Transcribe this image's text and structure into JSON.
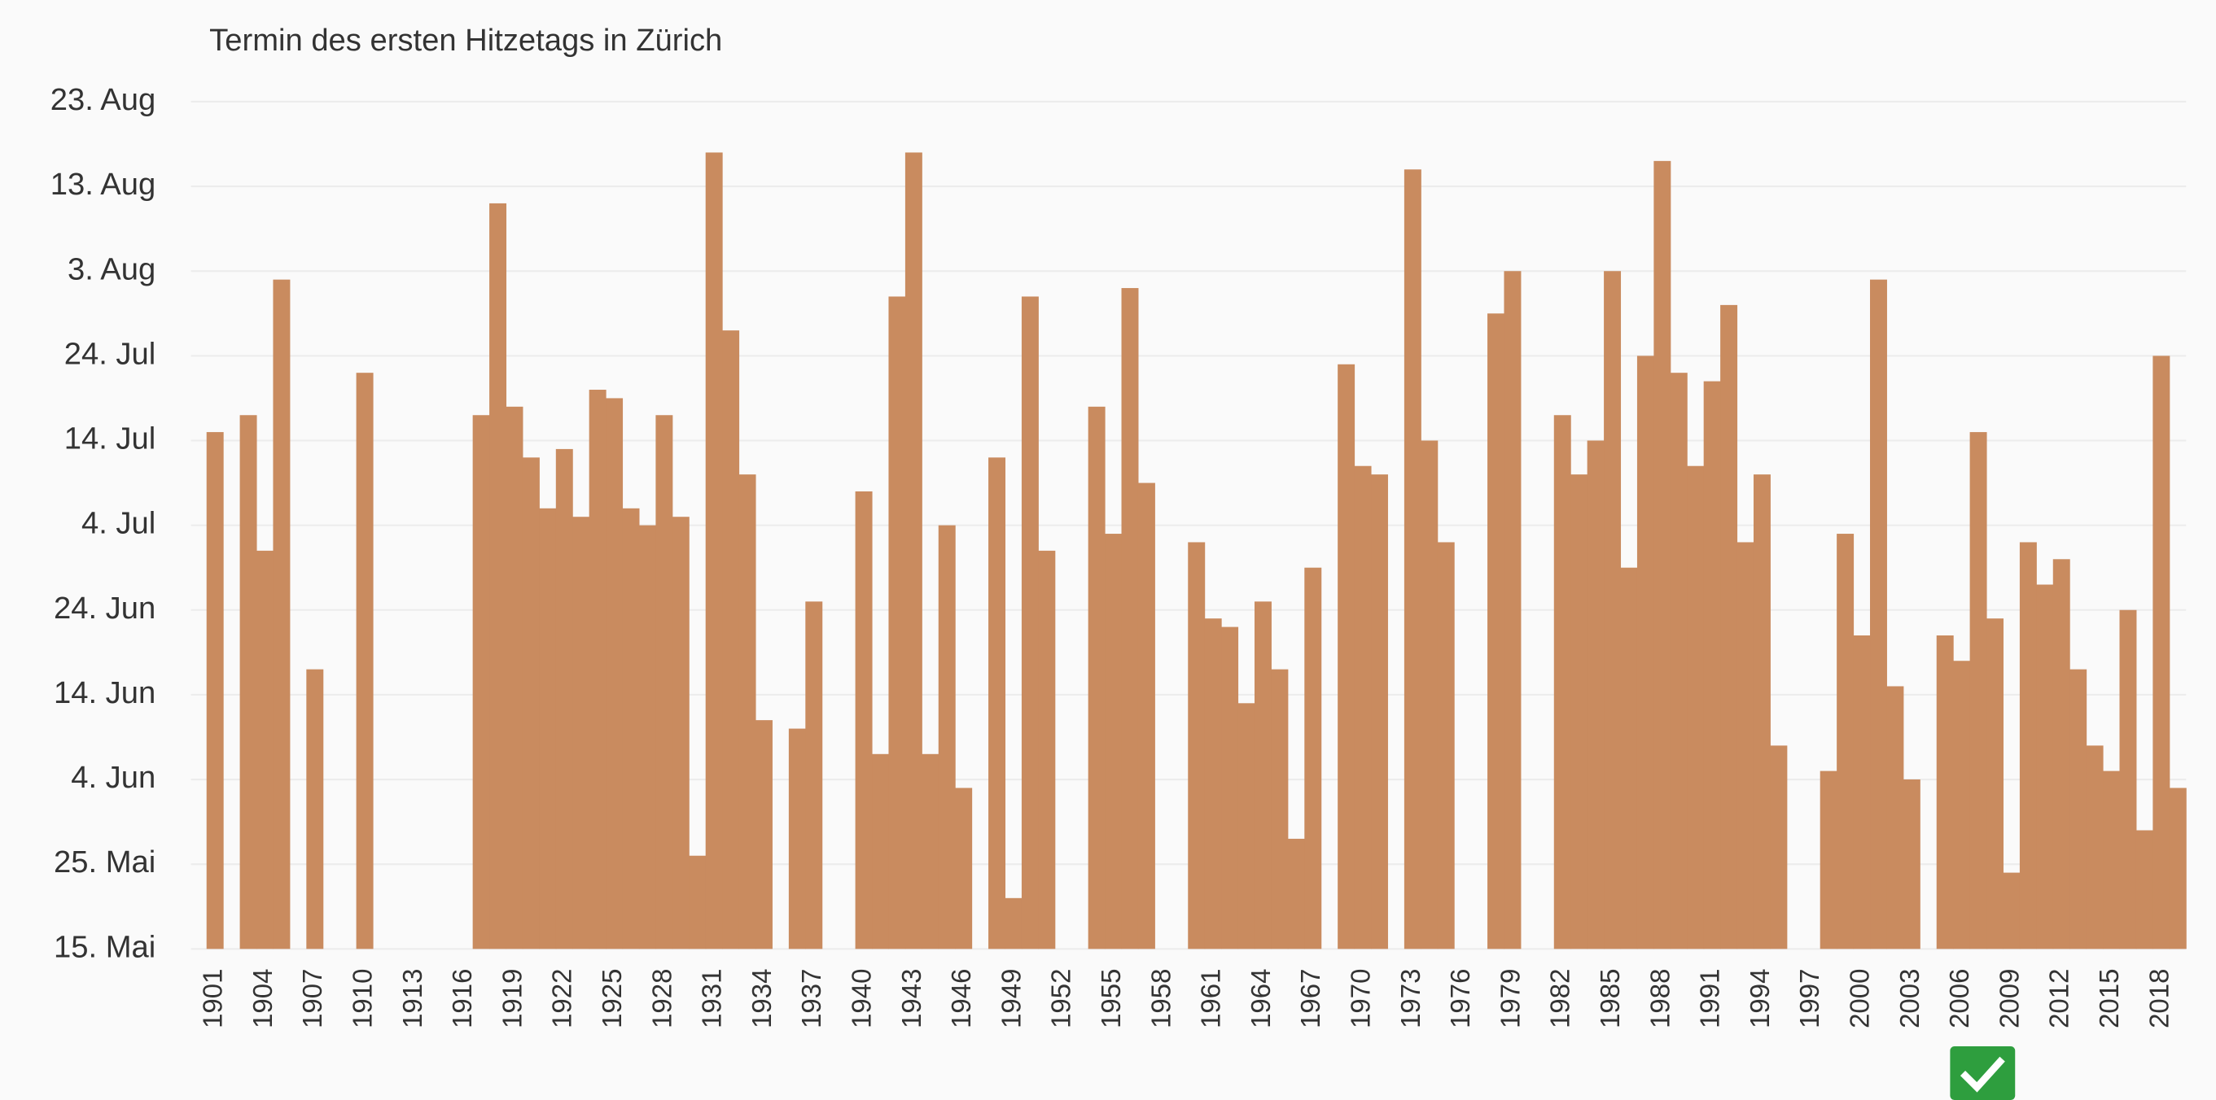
{
  "chart_data": {
    "type": "bar",
    "title": "Termin des ersten Hitzetags in Zürich",
    "categories": [
      "1901",
      null,
      null,
      "1904",
      null,
      null,
      "1907",
      null,
      null,
      "1910",
      null,
      null,
      "1913",
      null,
      null,
      "1916",
      null,
      null,
      "1919",
      null,
      null,
      "1922",
      null,
      null,
      "1925",
      null,
      null,
      "1928",
      null,
      null,
      "1931",
      null,
      null,
      "1934",
      null,
      null,
      "1937",
      null,
      null,
      "1940",
      null,
      null,
      "1943",
      null,
      null,
      "1946",
      null,
      null,
      "1949",
      null,
      null,
      "1952",
      null,
      null,
      "1955",
      null,
      null,
      "1958",
      null,
      null,
      "1961",
      null,
      null,
      "1964",
      null,
      null,
      "1967",
      null,
      null,
      "1970",
      null,
      null,
      "1973",
      null,
      null,
      "1976",
      null,
      null,
      "1979",
      null,
      null,
      "1982",
      null,
      null,
      "1985",
      null,
      null,
      "1988",
      null,
      null,
      "1991",
      null,
      null,
      "1994",
      null,
      null,
      "1997",
      null,
      null,
      "2000",
      null,
      null,
      "2003",
      null,
      null,
      "2006",
      null,
      null,
      "2009",
      null,
      null,
      "2012",
      null,
      null,
      "2015",
      null,
      null,
      "2018",
      null
    ],
    "values": [
      196,
      null,
      198,
      182,
      214,
      null,
      168,
      null,
      null,
      203,
      null,
      null,
      null,
      null,
      null,
      null,
      198,
      223,
      199,
      193,
      187,
      194,
      186,
      201,
      200,
      187,
      185,
      198,
      186,
      146,
      229,
      208,
      191,
      162,
      null,
      161,
      176,
      null,
      null,
      189,
      158,
      212,
      229,
      158,
      185,
      154,
      null,
      193,
      141,
      212,
      182,
      null,
      null,
      199,
      184,
      213,
      190,
      null,
      null,
      183,
      174,
      173,
      164,
      176,
      168,
      148,
      180,
      null,
      204,
      192,
      191,
      null,
      227,
      195,
      183,
      null,
      null,
      210,
      215,
      null,
      null,
      198,
      191,
      195,
      215,
      180,
      205,
      228,
      203,
      192,
      202,
      211,
      183,
      191,
      159,
      null,
      null,
      156,
      184,
      172,
      214,
      166,
      155,
      null,
      172,
      169,
      196,
      174,
      144,
      183,
      178,
      181,
      168,
      159,
      156,
      175,
      149,
      205,
      154
    ],
    "color": "#c98b5f",
    "ylim": [
      135,
      235
    ],
    "yticks": [
      {
        "value": 135,
        "label": "15. Mai"
      },
      {
        "value": 145,
        "label": "25. Mai"
      },
      {
        "value": 155,
        "label": "4. Jun"
      },
      {
        "value": 165,
        "label": "14. Jun"
      },
      {
        "value": 175,
        "label": "24. Jun"
      },
      {
        "value": 185,
        "label": "4. Jul"
      },
      {
        "value": 195,
        "label": "14. Jul"
      },
      {
        "value": 205,
        "label": "24. Jul"
      },
      {
        "value": 215,
        "label": "3. Aug"
      },
      {
        "value": 225,
        "label": "13. Aug"
      },
      {
        "value": 235,
        "label": "23. Aug"
      }
    ],
    "grid": true
  }
}
